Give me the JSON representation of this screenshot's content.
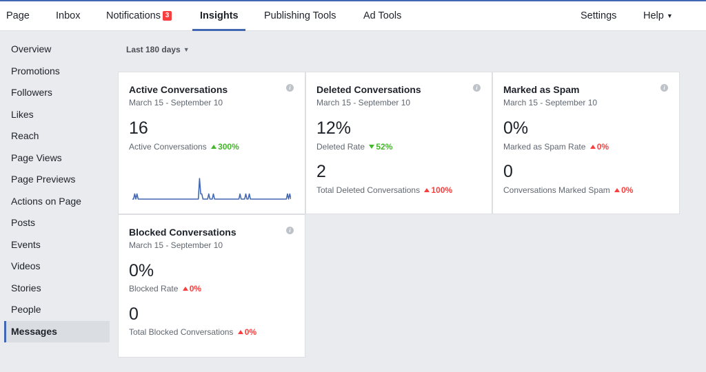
{
  "nav": {
    "items": [
      "Page",
      "Inbox",
      "Notifications",
      "Insights",
      "Publishing Tools",
      "Ad Tools"
    ],
    "notifications_badge": "3",
    "active": "Insights",
    "settings": "Settings",
    "help": "Help"
  },
  "sidebar": {
    "items": [
      "Overview",
      "Promotions",
      "Followers",
      "Likes",
      "Reach",
      "Page Views",
      "Page Previews",
      "Actions on Page",
      "Posts",
      "Events",
      "Videos",
      "Stories",
      "People",
      "Messages"
    ],
    "active": "Messages"
  },
  "range": {
    "label": "Last 180 days"
  },
  "colors": {
    "accent": "#4267b2",
    "increase_good": "#42b72a",
    "increase_bad": "#fa3e3e",
    "badge": "#fa3e3e"
  },
  "cards": {
    "active": {
      "title": "Active Conversations",
      "date": "March 15 - September 10",
      "value": "16",
      "metric": "Active Conversations",
      "change": "300%",
      "sparkline": [
        0,
        0,
        1,
        0,
        1,
        0,
        0,
        0,
        0,
        0,
        0,
        0,
        0,
        0,
        0,
        0,
        0,
        0,
        0,
        0,
        0,
        0,
        0,
        0,
        0,
        0,
        0,
        0,
        0,
        0,
        0,
        0,
        0,
        0,
        0,
        0,
        0,
        0,
        0,
        0,
        0,
        0,
        0,
        0,
        0,
        0,
        0,
        0,
        0,
        0,
        0,
        0,
        0,
        0,
        0,
        0,
        0,
        0,
        4,
        1,
        1,
        0,
        0,
        0,
        0,
        0,
        1,
        0,
        0,
        0,
        1,
        0,
        0,
        0,
        0,
        0,
        0,
        0,
        0,
        0,
        0,
        0,
        0,
        0,
        0,
        0,
        0,
        0,
        0,
        0,
        0,
        0,
        0,
        1,
        0,
        0,
        0,
        0,
        1,
        0,
        0,
        1,
        0,
        0,
        0,
        0,
        0,
        0,
        0,
        0,
        0,
        0,
        0,
        0,
        0,
        0,
        0,
        0,
        0,
        0,
        0,
        0,
        0,
        0,
        0,
        0,
        0,
        0,
        0,
        0,
        0,
        0,
        0,
        0,
        1,
        0,
        1,
        0
      ]
    },
    "deleted": {
      "title": "Deleted Conversations",
      "date": "March 15 - September 10",
      "value": "12%",
      "metric": "Deleted Rate",
      "change": "52%",
      "value2": "2",
      "metric2": "Total Deleted Conversations",
      "change2": "100%"
    },
    "spam": {
      "title": "Marked as Spam",
      "date": "March 15 - September 10",
      "value": "0%",
      "metric": "Marked as Spam Rate",
      "change": "0%",
      "value2": "0",
      "metric2": "Conversations Marked Spam",
      "change2": "0%"
    },
    "blocked": {
      "title": "Blocked Conversations",
      "date": "March 15 - September 10",
      "value": "0%",
      "metric": "Blocked Rate",
      "change": "0%",
      "value2": "0",
      "metric2": "Total Blocked Conversations",
      "change2": "0%"
    }
  }
}
